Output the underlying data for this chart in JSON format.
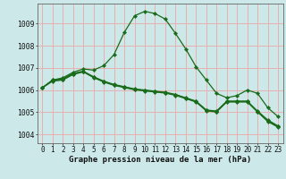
{
  "xlabel": "Graphe pression niveau de la mer (hPa)",
  "background_color": "#cce8e8",
  "grid_color": "#e8b0b0",
  "line_color": "#1a6b1a",
  "xlim": [
    -0.5,
    23.5
  ],
  "ylim": [
    1003.6,
    1009.9
  ],
  "yticks": [
    1004,
    1005,
    1006,
    1007,
    1008,
    1009
  ],
  "xticks": [
    0,
    1,
    2,
    3,
    4,
    5,
    6,
    7,
    8,
    9,
    10,
    11,
    12,
    13,
    14,
    15,
    16,
    17,
    18,
    19,
    20,
    21,
    22,
    23
  ],
  "series": [
    [
      1006.1,
      1006.45,
      1006.55,
      1006.8,
      1006.95,
      1006.9,
      1007.1,
      1007.6,
      1008.6,
      1009.35,
      1009.55,
      1009.45,
      1009.2,
      1008.55,
      1007.85,
      1007.05,
      1006.45,
      1005.85,
      1005.65,
      1005.75,
      1006.0,
      1005.85,
      1005.2,
      1004.8
    ],
    [
      1006.1,
      1006.45,
      1006.5,
      1006.75,
      1006.85,
      1006.6,
      1006.4,
      1006.25,
      1006.15,
      1006.05,
      1006.0,
      1005.95,
      1005.9,
      1005.8,
      1005.65,
      1005.5,
      1005.1,
      1005.05,
      1005.5,
      1005.5,
      1005.5,
      1005.05,
      1004.65,
      1004.38
    ],
    [
      1006.1,
      1006.43,
      1006.48,
      1006.72,
      1006.83,
      1006.58,
      1006.38,
      1006.23,
      1006.13,
      1006.03,
      1005.98,
      1005.93,
      1005.88,
      1005.78,
      1005.63,
      1005.48,
      1005.08,
      1005.03,
      1005.48,
      1005.48,
      1005.48,
      1005.03,
      1004.62,
      1004.35
    ],
    [
      1006.1,
      1006.4,
      1006.45,
      1006.7,
      1006.82,
      1006.56,
      1006.36,
      1006.21,
      1006.11,
      1006.01,
      1005.96,
      1005.91,
      1005.86,
      1005.76,
      1005.61,
      1005.46,
      1005.06,
      1005.01,
      1005.46,
      1005.46,
      1005.46,
      1005.01,
      1004.58,
      1004.32
    ]
  ],
  "tick_fontsize": 5.5,
  "xlabel_fontsize": 6.5
}
